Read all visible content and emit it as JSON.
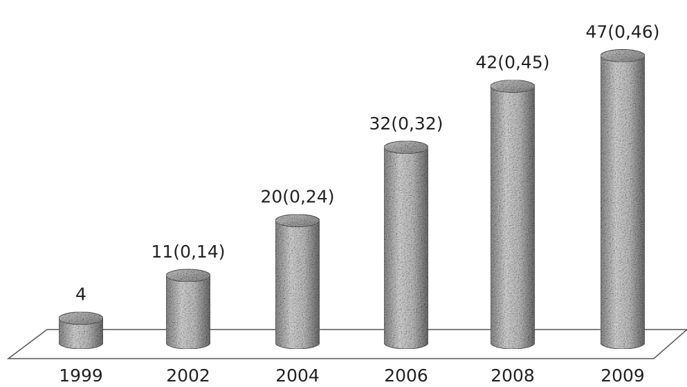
{
  "chart_data": {
    "type": "bar",
    "style": "3d-cylinder",
    "texture": "granite",
    "categories": [
      "1999",
      "2002",
      "2004",
      "2006",
      "2008",
      "2009"
    ],
    "values": [
      4,
      11,
      20,
      32,
      42,
      47
    ],
    "data_labels": [
      "4",
      "11(0,14)",
      "20(0,24)",
      "32(0,32)",
      "42(0,45)",
      "47(0,46)"
    ],
    "title": "",
    "xlabel": "",
    "ylabel": "",
    "ylim": [
      0,
      47
    ],
    "grid": false,
    "legend": "none",
    "colors": {
      "floor_stroke": "#555555",
      "cylinder_light": "#e6e6e6",
      "cylinder_mid": "#9b9b9b",
      "cylinder_dark": "#3c3c3c",
      "text": "#222222"
    }
  }
}
